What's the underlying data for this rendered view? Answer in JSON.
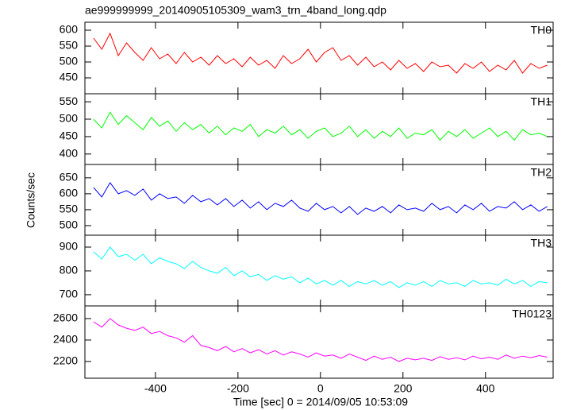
{
  "chart_data": [
    {
      "type": "line",
      "title": "ae999999999_20140905105309_wam3_trn_4band_long.qdp",
      "label": "TH0",
      "color": "#ff0000",
      "ylim": [
        400,
        625
      ],
      "yticks": [
        450,
        500,
        550,
        600
      ],
      "values": [
        575,
        540,
        590,
        520,
        560,
        530,
        505,
        545,
        510,
        525,
        495,
        530,
        500,
        515,
        490,
        520,
        495,
        510,
        485,
        515,
        490,
        505,
        480,
        520,
        495,
        510,
        540,
        500,
        530,
        545,
        505,
        520,
        490,
        515,
        485,
        500,
        475,
        505,
        480,
        495,
        470,
        500,
        485,
        490,
        465,
        495,
        480,
        500,
        470,
        490,
        475,
        505,
        465,
        495,
        480,
        490
      ]
    },
    {
      "type": "line",
      "label": "TH1",
      "color": "#00ff00",
      "ylim": [
        370,
        573
      ],
      "yticks": [
        400,
        450,
        500,
        550
      ],
      "values": [
        500,
        475,
        520,
        485,
        510,
        490,
        470,
        505,
        480,
        495,
        465,
        490,
        470,
        485,
        460,
        480,
        455,
        475,
        465,
        485,
        450,
        470,
        460,
        480,
        455,
        470,
        445,
        465,
        475,
        450,
        460,
        480,
        450,
        470,
        445,
        465,
        450,
        475,
        445,
        460,
        455,
        470,
        440,
        465,
        450,
        470,
        445,
        460,
        475,
        450,
        465,
        440,
        470,
        455,
        460,
        450
      ]
    },
    {
      "type": "line",
      "label": "TH2",
      "color": "#0000ff",
      "ylabel": "Counts/sec",
      "ylim": [
        470,
        692
      ],
      "yticks": [
        500,
        550,
        600,
        650
      ],
      "values": [
        620,
        590,
        635,
        600,
        610,
        595,
        615,
        580,
        600,
        585,
        590,
        570,
        595,
        575,
        585,
        565,
        585,
        560,
        580,
        555,
        575,
        550,
        570,
        560,
        580,
        555,
        545,
        570,
        550,
        560,
        540,
        560,
        535,
        555,
        545,
        560,
        540,
        565,
        550,
        555,
        545,
        570,
        550,
        560,
        540,
        565,
        550,
        570,
        545,
        560,
        555,
        575,
        550,
        565,
        545,
        560
      ]
    },
    {
      "type": "line",
      "label": "TH3",
      "color": "#00ffff",
      "ylim": [
        653,
        950
      ],
      "yticks": [
        700,
        800,
        900
      ],
      "values": [
        880,
        850,
        900,
        860,
        870,
        845,
        870,
        830,
        855,
        840,
        830,
        810,
        840,
        815,
        800,
        790,
        815,
        780,
        800,
        775,
        785,
        760,
        780,
        765,
        775,
        750,
        770,
        745,
        760,
        740,
        760,
        735,
        755,
        745,
        760,
        740,
        755,
        730,
        750,
        740,
        755,
        735,
        760,
        745,
        750,
        735,
        760,
        745,
        750,
        740,
        765,
        745,
        760,
        735,
        755,
        750
      ]
    },
    {
      "type": "line",
      "label": "TH0123",
      "color": "#ff00ff",
      "xlabel": "Time [sec] 0 = 2014/09/05 10:53:09",
      "ylim": [
        2044,
        2718
      ],
      "yticks": [
        2200,
        2400,
        2600
      ],
      "xlim": [
        -571,
        564
      ],
      "xticks": [
        -400,
        -200,
        0,
        200,
        400
      ],
      "x": [
        -550,
        -530,
        -510,
        -490,
        -470,
        -450,
        -430,
        -410,
        -390,
        -370,
        -350,
        -330,
        -310,
        -290,
        -270,
        -250,
        -230,
        -210,
        -190,
        -170,
        -150,
        -130,
        -110,
        -90,
        -70,
        -50,
        -30,
        -10,
        10,
        30,
        50,
        70,
        90,
        110,
        130,
        150,
        170,
        190,
        210,
        230,
        250,
        270,
        290,
        310,
        330,
        350,
        370,
        390,
        410,
        430,
        450,
        470,
        490,
        510,
        530,
        550
      ],
      "values": [
        2570,
        2520,
        2600,
        2540,
        2510,
        2490,
        2520,
        2460,
        2480,
        2440,
        2420,
        2380,
        2440,
        2350,
        2330,
        2300,
        2340,
        2290,
        2320,
        2280,
        2310,
        2270,
        2300,
        2260,
        2290,
        2270,
        2240,
        2280,
        2250,
        2260,
        2230,
        2270,
        2240,
        2210,
        2250,
        2220,
        2240,
        2200,
        2230,
        2215,
        2230,
        2210,
        2245,
        2220,
        2235,
        2215,
        2250,
        2225,
        2240,
        2220,
        2260,
        2230,
        2250,
        2235,
        2255,
        2240
      ]
    }
  ]
}
